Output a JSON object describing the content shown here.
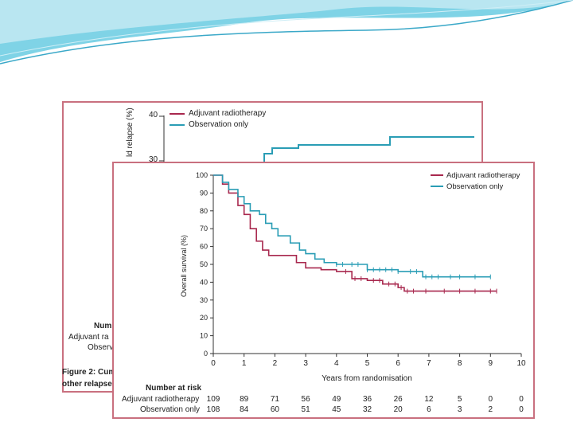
{
  "background_figure": {
    "y_axis_label": "ld relapse (%)",
    "ticks": [
      "40",
      "30"
    ],
    "legend": [
      "Adjuvant radiotherapy",
      "Observation only"
    ],
    "number_at_risk_fragment": "Numb",
    "row_fragments": [
      "Adjuvant ra",
      "Observ"
    ],
    "caption_fragment": [
      "Figure 2: Cum",
      "other relapse"
    ],
    "colors": {
      "radiotherapy": "#a8284e",
      "observation": "#2a9db5"
    }
  },
  "chart_data": {
    "type": "line",
    "title": "",
    "xlabel": "Years from randomisation",
    "ylabel": "Overall survival (%)",
    "xlim": [
      0,
      10
    ],
    "ylim": [
      0,
      100
    ],
    "x_ticks": [
      0,
      1,
      2,
      3,
      4,
      5,
      6,
      7,
      8,
      9,
      10
    ],
    "y_ticks": [
      0,
      10,
      20,
      30,
      40,
      50,
      60,
      70,
      80,
      90,
      100
    ],
    "legend_position": "top-right",
    "series": [
      {
        "name": "Adjuvant radiotherapy",
        "color": "#a8284e",
        "points": [
          [
            0,
            100
          ],
          [
            0.3,
            95
          ],
          [
            0.5,
            90
          ],
          [
            0.8,
            83
          ],
          [
            1.0,
            78
          ],
          [
            1.2,
            70
          ],
          [
            1.4,
            63
          ],
          [
            1.6,
            58
          ],
          [
            1.8,
            55
          ],
          [
            2.0,
            55
          ],
          [
            2.5,
            55
          ],
          [
            2.7,
            51
          ],
          [
            3.0,
            48
          ],
          [
            3.5,
            47
          ],
          [
            4.0,
            46
          ],
          [
            4.5,
            42
          ],
          [
            5.0,
            41
          ],
          [
            5.5,
            39
          ],
          [
            6.0,
            37
          ],
          [
            6.2,
            35
          ],
          [
            7.0,
            35
          ],
          [
            8.0,
            35
          ],
          [
            9.2,
            35
          ]
        ],
        "censor_x": [
          4.3,
          4.6,
          4.8,
          5.2,
          5.4,
          5.7,
          5.9,
          6.1,
          6.3,
          6.5,
          6.9,
          7.5,
          8.0,
          8.5,
          9.0,
          9.2
        ]
      },
      {
        "name": "Observation only",
        "color": "#2a9db5",
        "points": [
          [
            0,
            100
          ],
          [
            0.3,
            96
          ],
          [
            0.5,
            92
          ],
          [
            0.8,
            88
          ],
          [
            1.0,
            84
          ],
          [
            1.2,
            80
          ],
          [
            1.5,
            78
          ],
          [
            1.7,
            73
          ],
          [
            1.9,
            70
          ],
          [
            2.1,
            66
          ],
          [
            2.5,
            62
          ],
          [
            2.8,
            58
          ],
          [
            3.0,
            56
          ],
          [
            3.3,
            53
          ],
          [
            3.6,
            51
          ],
          [
            4.0,
            50
          ],
          [
            4.5,
            50
          ],
          [
            5.0,
            47
          ],
          [
            5.5,
            47
          ],
          [
            6.0,
            46
          ],
          [
            6.3,
            46
          ],
          [
            6.8,
            43
          ],
          [
            7.5,
            43
          ],
          [
            8.0,
            43
          ],
          [
            9.0,
            43
          ]
        ],
        "censor_x": [
          4.0,
          4.2,
          4.5,
          4.7,
          5.0,
          5.2,
          5.4,
          5.6,
          5.8,
          6.0,
          6.4,
          6.6,
          6.9,
          7.1,
          7.3,
          7.7,
          8.0,
          8.5,
          9.0
        ]
      }
    ],
    "number_at_risk": {
      "title": "Number at risk",
      "rows": [
        {
          "label": "Adjuvant radiotherapy",
          "values": [
            "109",
            "89",
            "71",
            "56",
            "49",
            "36",
            "26",
            "12",
            "5",
            "0",
            "0"
          ]
        },
        {
          "label": "Observation only",
          "values": [
            "108",
            "84",
            "60",
            "51",
            "45",
            "32",
            "20",
            "6",
            "3",
            "2",
            "0"
          ]
        }
      ]
    }
  }
}
